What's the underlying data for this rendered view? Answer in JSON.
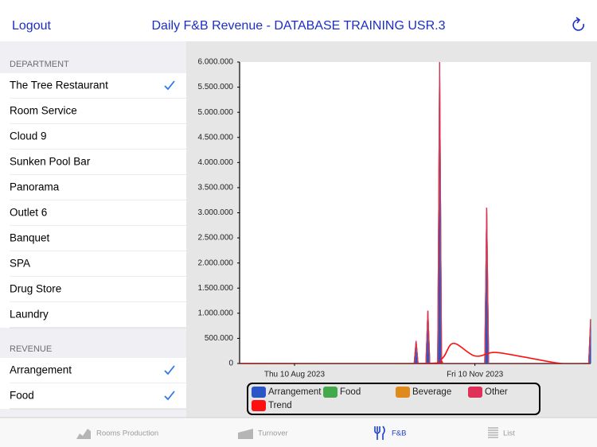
{
  "header": {
    "left_button": "Logout",
    "title": "Daily F&B Revenue - DATABASE TRAINING USR.3"
  },
  "sidebar": {
    "sections": [
      {
        "title": "DEPARTMENT",
        "items": [
          {
            "label": "The Tree Restaurant",
            "checked": true
          },
          {
            "label": "Room Service",
            "checked": false
          },
          {
            "label": "Cloud 9",
            "checked": false
          },
          {
            "label": "Sunken Pool Bar",
            "checked": false
          },
          {
            "label": "Panorama",
            "checked": false
          },
          {
            "label": "Outlet 6",
            "checked": false
          },
          {
            "label": "Banquet",
            "checked": false
          },
          {
            "label": "SPA",
            "checked": false
          },
          {
            "label": "Drug Store",
            "checked": false
          },
          {
            "label": "Laundry",
            "checked": false
          }
        ]
      },
      {
        "title": "REVENUE",
        "items": [
          {
            "label": "Arrangement",
            "checked": true
          },
          {
            "label": "Food",
            "checked": true
          }
        ]
      }
    ]
  },
  "chart_data": {
    "type": "area",
    "x": [
      "2023-07-13",
      "2023-10-10",
      "2023-10-11",
      "2023-10-12",
      "2023-10-16",
      "2023-10-17",
      "2023-10-18",
      "2023-10-22",
      "2023-10-23",
      "2023-10-24",
      "2023-11-15",
      "2023-11-16",
      "2023-11-17",
      "2024-01-07",
      "2024-01-08"
    ],
    "series": [
      {
        "name": "Arrangement",
        "color": "#2a56c6",
        "values": [
          0,
          0,
          450000,
          0,
          0,
          1050000,
          0,
          0,
          6000000,
          0,
          0,
          3100000,
          0,
          0,
          880000
        ]
      },
      {
        "name": "Food",
        "color": "#43a94a",
        "values": [
          0,
          0,
          0,
          0,
          0,
          0,
          0,
          0,
          0,
          0,
          0,
          0,
          0,
          0,
          0
        ]
      },
      {
        "name": "Beverage",
        "color": "#e08a1e",
        "values": [
          0,
          0,
          0,
          0,
          0,
          0,
          0,
          0,
          0,
          0,
          0,
          0,
          0,
          0,
          0
        ]
      },
      {
        "name": "Other",
        "color": "#e0305a",
        "values": [
          0,
          0,
          0,
          0,
          0,
          0,
          0,
          0,
          0,
          0,
          0,
          0,
          0,
          0,
          0
        ]
      },
      {
        "name": "Trend",
        "color": "#ff1010",
        "type": "line",
        "x": [
          "2023-07-13",
          "2023-10-14",
          "2023-10-24",
          "2023-10-30",
          "2023-11-10",
          "2023-11-20",
          "2023-12-05",
          "2023-12-24",
          "2024-01-08"
        ],
        "values": [
          0,
          0,
          90000,
          400000,
          150000,
          220000,
          130000,
          0,
          0
        ]
      }
    ],
    "xlim": [
      "2023-07-13",
      "2024-01-08"
    ],
    "xticks": [
      {
        "value": "2023-08-10",
        "label": "Thu 10 Aug 2023"
      },
      {
        "value": "2023-11-10",
        "label": "Fri 10 Nov 2023"
      }
    ],
    "ylim": [
      0,
      6000000
    ],
    "yticks": [
      0,
      {
        "value": 500000,
        "label": "500.000"
      },
      {
        "value": 1000000,
        "label": "1.000.000"
      },
      {
        "value": 1500000,
        "label": "1.500.000"
      },
      {
        "value": 2000000,
        "label": "2.000.000"
      },
      {
        "value": 2500000,
        "label": "2.500.000"
      },
      {
        "value": 3000000,
        "label": "3.000.000"
      },
      {
        "value": 3500000,
        "label": "3.500.000"
      },
      {
        "value": 4000000,
        "label": "4.000.000"
      },
      {
        "value": 4500000,
        "label": "4.500.000"
      },
      {
        "value": 5000000,
        "label": "5.000.000"
      },
      {
        "value": 5500000,
        "label": "5.500.000"
      },
      {
        "value": 6000000,
        "label": "6.000.000"
      }
    ],
    "legend": "bottom"
  },
  "tabs": [
    {
      "label": "Rooms Production",
      "active": false
    },
    {
      "label": "Turnover",
      "active": false
    },
    {
      "label": "F&B",
      "active": true
    },
    {
      "label": "List",
      "active": false
    }
  ]
}
